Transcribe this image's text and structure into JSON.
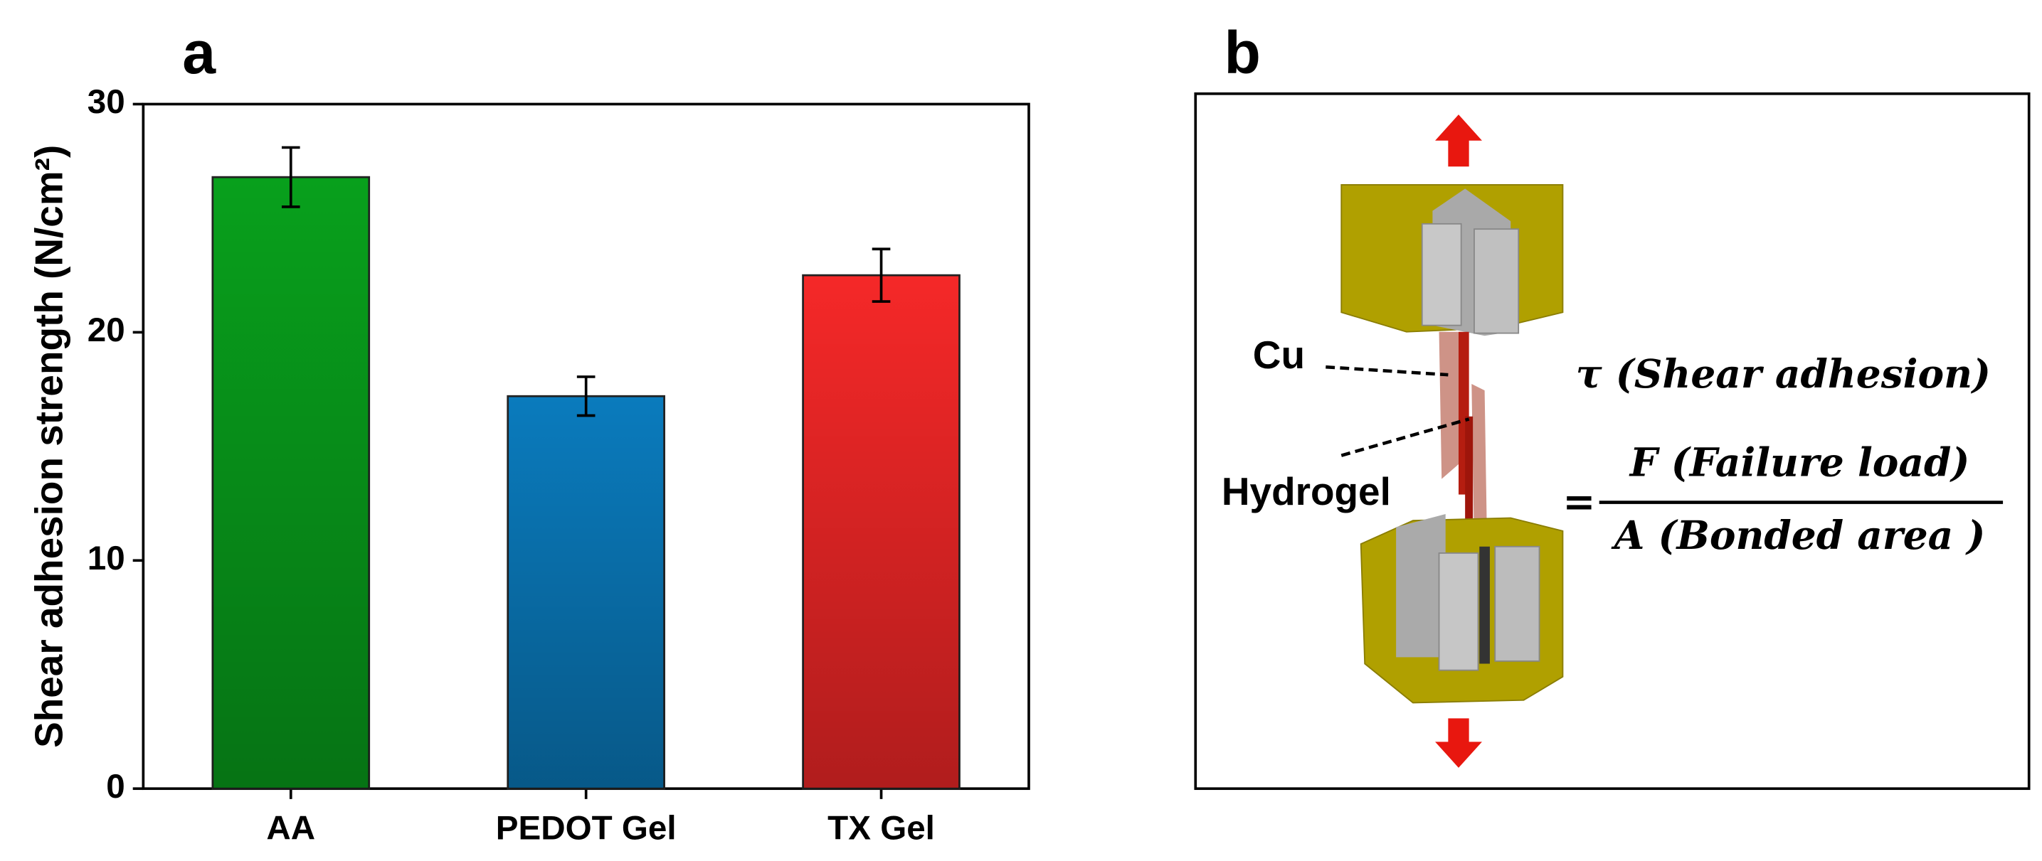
{
  "chart_data": {
    "type": "bar",
    "panel_label": "a",
    "ylabel": "Shear adhesion strength (N/cm²)",
    "categories": [
      "AA",
      "PEDOT Gel",
      "TX Gel"
    ],
    "values": [
      26.8,
      17.2,
      22.5
    ],
    "errors": [
      1.3,
      0.85,
      1.15
    ],
    "colors": [
      "#08a01c",
      "#0a7bbd",
      "#f52828"
    ],
    "ylim": [
      0,
      30
    ],
    "yticks": [
      0,
      10,
      20,
      30
    ],
    "grid": false
  },
  "diagram": {
    "panel_label": "b",
    "labels": {
      "cu": "Cu",
      "hydrogel": "Hydrogel"
    },
    "formula": {
      "lhs": "τ (Shear adhesion)",
      "equals": "=",
      "numerator": "F (Failure load)",
      "denominator": "A (Bonded area )"
    }
  }
}
